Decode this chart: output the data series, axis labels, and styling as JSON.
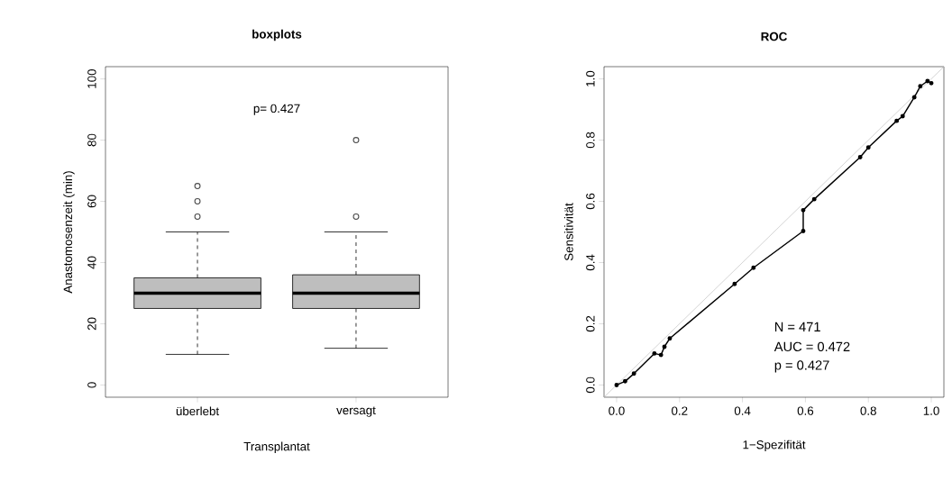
{
  "chart_data": [
    {
      "type": "box",
      "title": "boxplots",
      "xlabel": "Transplantat",
      "ylabel": "Anastomosenzeit (min)",
      "categories": [
        "überlebt",
        "versagt"
      ],
      "color": "#bebebe",
      "boxes": [
        {
          "low": 10,
          "q1": 25,
          "median": 30,
          "q3": 35,
          "high": 50,
          "outliers": [
            55,
            60,
            65
          ]
        },
        {
          "low": 12,
          "q1": 25,
          "median": 30,
          "q3": 36,
          "high": 50,
          "outliers": [
            55,
            80
          ]
        }
      ],
      "ylim": [
        -4,
        104
      ],
      "yticks": [
        0,
        20,
        40,
        60,
        80,
        100
      ],
      "annotations": [
        "p= 0.427"
      ]
    },
    {
      "type": "line",
      "title": "ROC",
      "xlabel": "1−Spezifität",
      "ylabel": "Sensitivität",
      "series": [
        {
          "color": "#000000",
          "marker": "circle",
          "x": [
            0,
            0.027,
            0.055,
            0.12,
            0.141,
            0.152,
            0.169,
            0.375,
            0.435,
            0.593,
            0.593,
            0.628,
            0.774,
            0.8,
            0.89,
            0.909,
            0.946,
            0.965,
            0.988,
            1.0
          ],
          "values": [
            0,
            0.012,
            0.037,
            0.103,
            0.098,
            0.125,
            0.152,
            0.33,
            0.383,
            0.503,
            0.571,
            0.607,
            0.744,
            0.776,
            0.863,
            0.878,
            0.94,
            0.976,
            0.993,
            0.986
          ]
        },
        {
          "color": "#bebebe",
          "marker": "none",
          "x": [
            -0.04,
            1.04
          ],
          "values": [
            -0.04,
            1.04
          ]
        }
      ],
      "xlim": [
        -0.04,
        1.04
      ],
      "ylim": [
        -0.04,
        1.04
      ],
      "xticks": [
        {
          "value": 0,
          "label": "0.0"
        },
        {
          "value": 0.2,
          "label": "0.2"
        },
        {
          "value": 0.4,
          "label": "0.4"
        },
        {
          "value": 0.6,
          "label": "0.6"
        },
        {
          "value": 0.8,
          "label": "0.8"
        },
        {
          "value": 1,
          "label": "1.0"
        }
      ],
      "yticks": [
        {
          "value": 0,
          "label": "0.0"
        },
        {
          "value": 0.2,
          "label": "0.2"
        },
        {
          "value": 0.4,
          "label": "0.4"
        },
        {
          "value": 0.6,
          "label": "0.6"
        },
        {
          "value": 0.8,
          "label": "0.8"
        },
        {
          "value": 1,
          "label": "1.0"
        }
      ],
      "annotations": [
        "N  = 471",
        "AUC = 0.472",
        "p  = 0.427"
      ]
    }
  ]
}
